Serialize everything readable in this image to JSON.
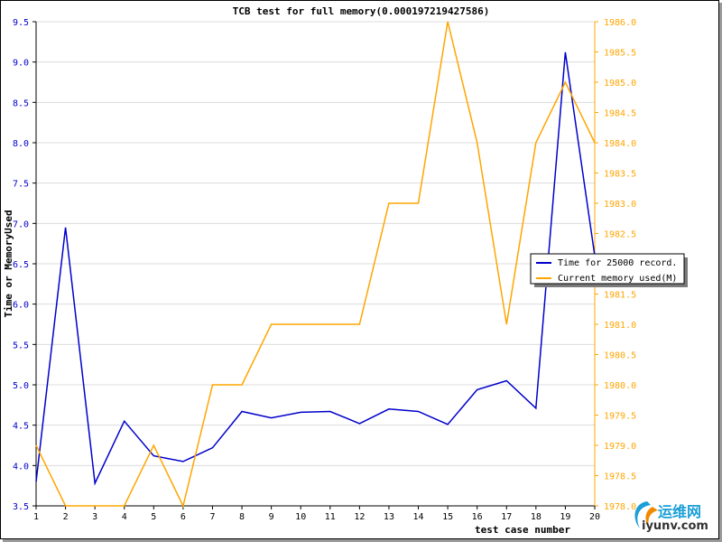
{
  "chart_data": {
    "type": "line",
    "title": "TCB test for full memory(0.000197219427586)",
    "xlabel": "test case number",
    "ylabel": "Time or MemoryUsed",
    "categories": [
      "1",
      "2",
      "3",
      "4",
      "5",
      "6",
      "7",
      "8",
      "9",
      "10",
      "11",
      "12",
      "13",
      "14",
      "15",
      "16",
      "17",
      "18",
      "19",
      "20"
    ],
    "ylim_left": [
      3.5,
      9.5
    ],
    "ylim_right": [
      1978.0,
      1986.0
    ],
    "yticks_left": [
      "3.5",
      "4.0",
      "4.5",
      "5.0",
      "5.5",
      "6.0",
      "6.5",
      "7.0",
      "7.5",
      "8.0",
      "8.5",
      "9.0",
      "9.5"
    ],
    "yticks_right": [
      "1978.0",
      "1978.5",
      "1979.0",
      "1979.5",
      "1980.0",
      "1980.5",
      "1981.0",
      "1981.5",
      "1982.0",
      "1982.5",
      "1983.0",
      "1983.5",
      "1984.0",
      "1984.5",
      "1985.0",
      "1985.5",
      "1986.0"
    ],
    "grid": true,
    "legend_position": "right",
    "series": [
      {
        "name": "Time for 25000 record.",
        "axis": "left",
        "color": "#0000cc",
        "values": [
          3.8,
          6.95,
          3.78,
          4.55,
          4.12,
          4.05,
          4.22,
          4.67,
          4.59,
          4.66,
          4.67,
          4.52,
          4.7,
          4.67,
          4.51,
          4.94,
          5.05,
          4.71,
          9.12,
          6.6
        ]
      },
      {
        "name": "Current memory used(M)",
        "axis": "right",
        "color": "#ffa500",
        "values": [
          1979.0,
          1978.0,
          1978.0,
          1978.0,
          1979.0,
          1978.0,
          1980.0,
          1980.0,
          1981.0,
          1981.0,
          1981.0,
          1981.0,
          1983.0,
          1983.0,
          1986.0,
          1984.0,
          1981.0,
          1984.0,
          1985.0,
          1984.0
        ]
      }
    ]
  },
  "watermark": {
    "text": "运维网",
    "url": "iyunv.com"
  }
}
